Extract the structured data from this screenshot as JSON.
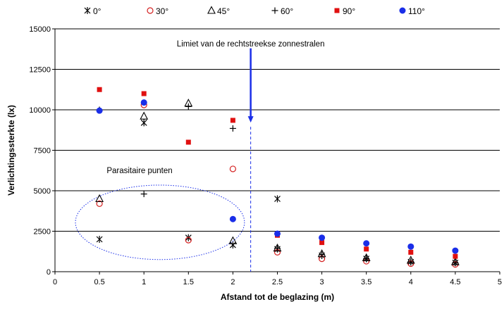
{
  "chart_data": {
    "type": "scatter",
    "xlabel": "Afstand tot de beglazing (m)",
    "ylabel": "Verlichtingssterkte (lx)",
    "xlim": [
      0,
      5
    ],
    "ylim": [
      0,
      15000
    ],
    "x_ticks": [
      "0",
      "0.5",
      "1",
      "1.5",
      "2",
      "2.5",
      "3",
      "3.5",
      "4",
      "4.5",
      "5"
    ],
    "y_ticks": [
      "0",
      "2500",
      "5000",
      "7500",
      "10000",
      "12500",
      "15000"
    ],
    "grid": "horizontal",
    "legend_position": "top",
    "series": [
      {
        "name": "0°",
        "marker": "star",
        "color": "#000000",
        "points": [
          [
            0.5,
            2000
          ],
          [
            1,
            9200
          ],
          [
            1.5,
            2100
          ],
          [
            2,
            1650
          ],
          [
            2.5,
            4500
          ],
          [
            2.5,
            1400
          ],
          [
            3,
            1000
          ],
          [
            3.5,
            800
          ],
          [
            4,
            600
          ],
          [
            4.5,
            550
          ]
        ]
      },
      {
        "name": "30°",
        "marker": "circle-open",
        "color": "#d42020",
        "points": [
          [
            0.5,
            4200
          ],
          [
            1,
            10300
          ],
          [
            1.5,
            1950
          ],
          [
            2,
            6350
          ],
          [
            2.5,
            1200
          ],
          [
            3,
            800
          ],
          [
            3.5,
            650
          ],
          [
            4,
            500
          ],
          [
            4.5,
            450
          ]
        ]
      },
      {
        "name": "45°",
        "marker": "triangle-open",
        "color": "#000000",
        "points": [
          [
            0.5,
            4500
          ],
          [
            1,
            9600
          ],
          [
            1.5,
            10400
          ],
          [
            2,
            1900
          ],
          [
            2.5,
            1450
          ],
          [
            3,
            1100
          ],
          [
            3.5,
            850
          ],
          [
            4,
            700
          ],
          [
            4.5,
            600
          ]
        ]
      },
      {
        "name": "60°",
        "marker": "plus",
        "color": "#000000",
        "points": [
          [
            0.5,
            10000
          ],
          [
            1,
            4800
          ],
          [
            1.5,
            10200
          ],
          [
            2,
            8850
          ],
          [
            2.5,
            1450
          ],
          [
            3,
            1050
          ],
          [
            3.5,
            800
          ],
          [
            4,
            600
          ],
          [
            4.5,
            550
          ]
        ]
      },
      {
        "name": "90°",
        "marker": "square",
        "color": "#e01010",
        "points": [
          [
            0.5,
            11250
          ],
          [
            1,
            11000
          ],
          [
            1.5,
            8000
          ],
          [
            2,
            9350
          ],
          [
            2.5,
            2250
          ],
          [
            3,
            1800
          ],
          [
            3.5,
            1400
          ],
          [
            4,
            1200
          ],
          [
            4.5,
            950
          ]
        ]
      },
      {
        "name": "110°",
        "marker": "circle",
        "color": "#1a2ee8",
        "points": [
          [
            0.5,
            9950
          ],
          [
            1,
            10450
          ],
          [
            2,
            3250
          ],
          [
            2.5,
            2350
          ],
          [
            3,
            2100
          ],
          [
            3.5,
            1750
          ],
          [
            4,
            1550
          ],
          [
            4.5,
            1300
          ]
        ]
      }
    ],
    "annotations": [
      {
        "text": "Limiet van de rechtstreekse zonnestralen",
        "arrow_x": 2.2,
        "arrow_from_y": 13800,
        "arrow_to_y": 9300,
        "line_x": 2.2
      },
      {
        "text": "Parasitaire punten",
        "ellipse_center": [
          1.18,
          3050
        ],
        "ellipse_rx_data": 0.95,
        "ellipse_ry_data": 2300
      }
    ]
  }
}
